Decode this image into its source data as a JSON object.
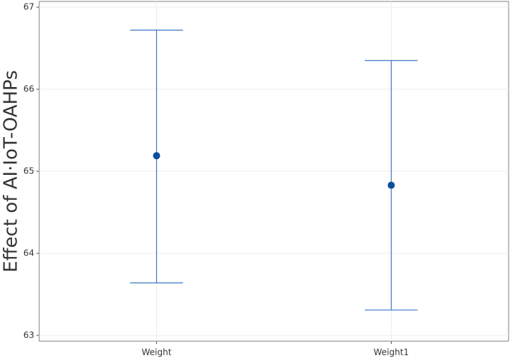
{
  "chart_data": {
    "type": "errorbar",
    "y_label": "Effect of AI·IoT-OAHPs",
    "categories": [
      "Weight",
      "Weight1"
    ],
    "values": [
      65.19,
      64.83
    ],
    "lower": [
      63.64,
      63.31
    ],
    "upper": [
      66.72,
      66.35
    ],
    "color": "#3a78c4",
    "point_color": "#0b4f9e",
    "ylim": [
      62.93,
      67.07
    ],
    "yticks": [
      63,
      64,
      65,
      66,
      67
    ],
    "grid": true
  }
}
